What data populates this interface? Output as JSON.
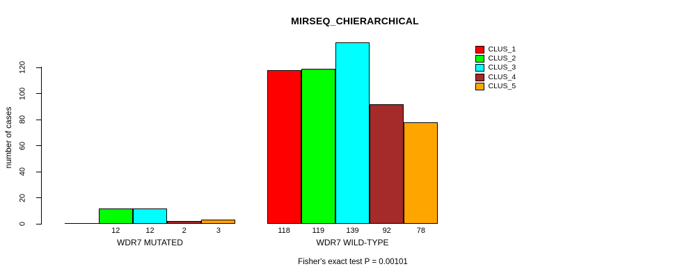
{
  "chart_data": {
    "type": "bar",
    "title": "MIRSEQ_CHIERARCHICAL",
    "ylabel": "number of cases",
    "xlabel": "",
    "ylim": [
      0,
      139
    ],
    "yticks": [
      0,
      20,
      40,
      60,
      80,
      100,
      120
    ],
    "grid": false,
    "legend_position": "top-right",
    "categories": [
      "WDR7 MUTATED",
      "WDR7 WILD-TYPE"
    ],
    "series": [
      {
        "name": "CLUS_1",
        "color": "#FF0000",
        "values": [
          0,
          118
        ]
      },
      {
        "name": "CLUS_2",
        "color": "#00FF00",
        "values": [
          12,
          119
        ]
      },
      {
        "name": "CLUS_3",
        "color": "#00FFFF",
        "values": [
          12,
          139
        ]
      },
      {
        "name": "CLUS_4",
        "color": "#A52A2A",
        "values": [
          2,
          92
        ]
      },
      {
        "name": "CLUS_5",
        "color": "#FFA500",
        "values": [
          3,
          78
        ]
      }
    ],
    "bar_value_labels": [
      [
        "",
        "12",
        "12",
        "2",
        "3"
      ],
      [
        "118",
        "119",
        "139",
        "92",
        "78"
      ]
    ],
    "annotation": "Fisher's exact test P = 0.00101",
    "colors": {
      "axis": "#000000",
      "text": "#000000",
      "background": "#FFFFFF"
    }
  }
}
